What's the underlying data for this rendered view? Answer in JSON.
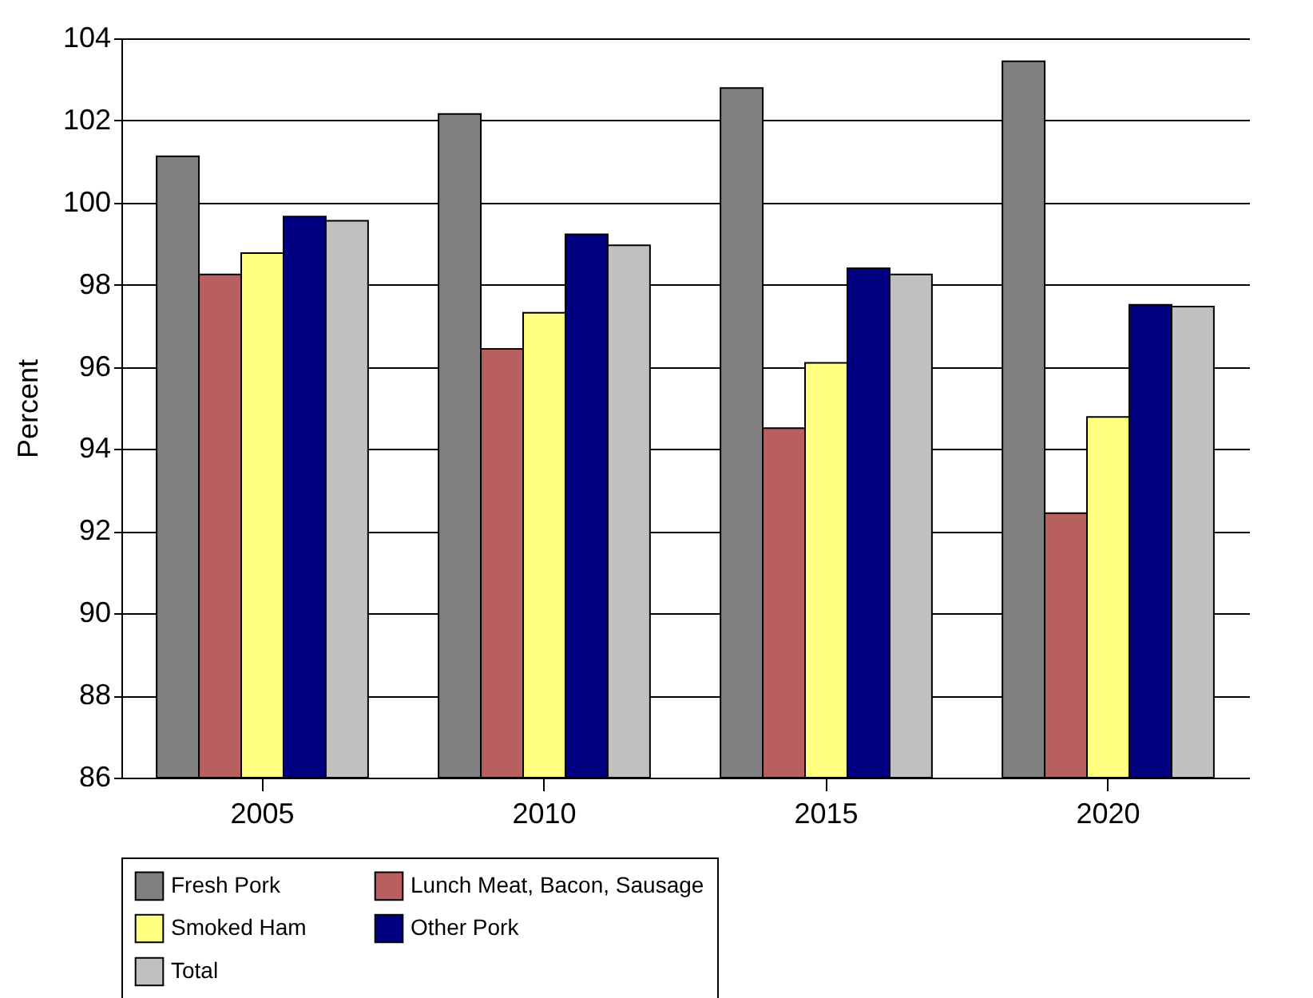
{
  "chart_data": {
    "type": "bar",
    "ylabel": "Percent",
    "categories": [
      "2005",
      "2010",
      "2015",
      "2020"
    ],
    "series": [
      {
        "name": "Fresh Pork",
        "color": "#808080",
        "values": [
          101.13,
          102.16,
          102.79,
          103.44
        ]
      },
      {
        "name": "Lunch Meat, Bacon, Sausage",
        "color": "#b86060",
        "values": [
          98.25,
          96.44,
          94.51,
          92.44
        ]
      },
      {
        "name": "Smoked Ham",
        "color": "#ffff80",
        "values": [
          98.77,
          97.32,
          96.1,
          94.78
        ]
      },
      {
        "name": "Other Pork",
        "color": "#000080",
        "values": [
          99.66,
          99.23,
          98.4,
          97.51
        ]
      },
      {
        "name": "Total",
        "color": "#c0c0c0",
        "values": [
          99.56,
          98.96,
          98.25,
          97.47
        ]
      }
    ],
    "ylim": [
      86,
      104
    ],
    "yticks": [
      86,
      88,
      90,
      92,
      94,
      96,
      98,
      100,
      102,
      104
    ],
    "grid": "y",
    "legend": "bottom"
  }
}
